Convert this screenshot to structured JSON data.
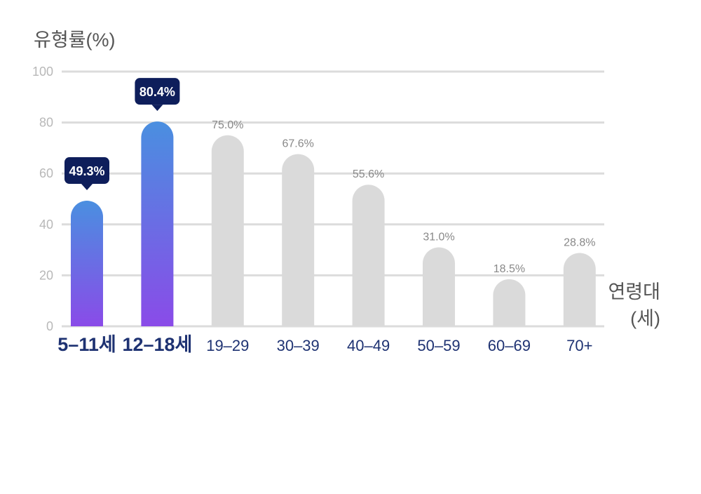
{
  "chart_data": {
    "type": "bar",
    "ylabel": "유형률(%)",
    "xlabel_line1": "연령대",
    "xlabel_line2": "(세)",
    "ylim": [
      0,
      100
    ],
    "yticks": [
      "0",
      "20",
      "40",
      "60",
      "80",
      "100"
    ],
    "grid": true,
    "categories": [
      "5–11세",
      "12–18세",
      "19–29",
      "30–39",
      "40–49",
      "50–59",
      "60–69",
      "70+"
    ],
    "values": [
      49.3,
      80.4,
      75.0,
      67.6,
      55.6,
      31.0,
      18.5,
      28.8
    ],
    "value_labels": [
      "49.3%",
      "80.4%",
      "75.0%",
      "67.6%",
      "55.6%",
      "31.0%",
      "18.5%",
      "28.8%"
    ],
    "highlighted": [
      true,
      true,
      false,
      false,
      false,
      false,
      false,
      false
    ],
    "colors": {
      "highlight_top": "#4A8FE0",
      "highlight_bottom": "#8A4BE8",
      "other_bar": "#DADADA",
      "callout_bg": "#0E1E5B",
      "grid": "#DCDCDC",
      "tick_text": "#B8B8B8",
      "label_text": "#888888",
      "axis_label": "#555555",
      "category_text": "#1E3272"
    }
  }
}
